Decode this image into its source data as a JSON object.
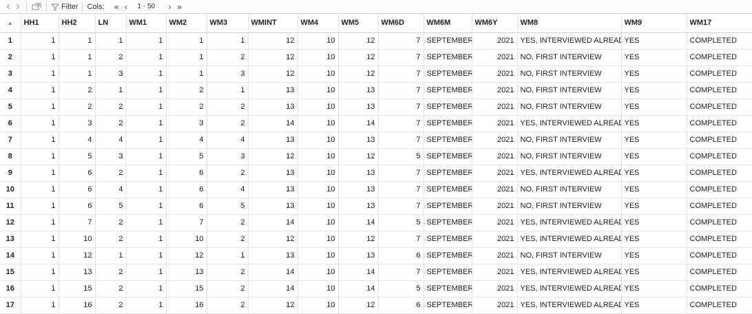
{
  "toolbar": {
    "filter_label": "Filter",
    "cols_label": "Cols:",
    "first_page": "«",
    "prev_page": "‹",
    "col_range": "1 - 50",
    "next_page": "›",
    "last_page": "»"
  },
  "columns": [
    "HH1",
    "HH2",
    "LN",
    "WM1",
    "WM2",
    "WM3",
    "WMINT",
    "WM4",
    "WM5",
    "WM6D",
    "WM6M",
    "WM6Y",
    "WM8",
    "WM9",
    "WM17"
  ],
  "rows": [
    [
      "1",
      "1",
      "1",
      "1",
      "1",
      "1",
      "1",
      "12",
      "10",
      "12",
      "7",
      "SEPTEMBER",
      "2021",
      "YES, INTERVIEWED ALREADY",
      "YES",
      "COMPLETED"
    ],
    [
      "2",
      "1",
      "1",
      "2",
      "1",
      "1",
      "2",
      "12",
      "10",
      "12",
      "7",
      "SEPTEMBER",
      "2021",
      "NO, FIRST INTERVIEW",
      "YES",
      "COMPLETED"
    ],
    [
      "3",
      "1",
      "1",
      "3",
      "1",
      "1",
      "3",
      "12",
      "10",
      "12",
      "7",
      "SEPTEMBER",
      "2021",
      "NO, FIRST INTERVIEW",
      "YES",
      "COMPLETED"
    ],
    [
      "4",
      "1",
      "2",
      "1",
      "1",
      "2",
      "1",
      "13",
      "10",
      "13",
      "7",
      "SEPTEMBER",
      "2021",
      "NO, FIRST INTERVIEW",
      "YES",
      "COMPLETED"
    ],
    [
      "5",
      "1",
      "2",
      "2",
      "1",
      "2",
      "2",
      "13",
      "10",
      "13",
      "7",
      "SEPTEMBER",
      "2021",
      "NO, FIRST INTERVIEW",
      "YES",
      "COMPLETED"
    ],
    [
      "6",
      "1",
      "3",
      "2",
      "1",
      "3",
      "2",
      "14",
      "10",
      "14",
      "7",
      "SEPTEMBER",
      "2021",
      "YES, INTERVIEWED ALREADY",
      "YES",
      "COMPLETED"
    ],
    [
      "7",
      "1",
      "4",
      "4",
      "1",
      "4",
      "4",
      "13",
      "10",
      "13",
      "7",
      "SEPTEMBER",
      "2021",
      "NO, FIRST INTERVIEW",
      "YES",
      "COMPLETED"
    ],
    [
      "8",
      "1",
      "5",
      "3",
      "1",
      "5",
      "3",
      "12",
      "10",
      "12",
      "5",
      "SEPTEMBER",
      "2021",
      "NO, FIRST INTERVIEW",
      "YES",
      "COMPLETED"
    ],
    [
      "9",
      "1",
      "6",
      "2",
      "1",
      "6",
      "2",
      "13",
      "10",
      "13",
      "7",
      "SEPTEMBER",
      "2021",
      "YES, INTERVIEWED ALREADY",
      "YES",
      "COMPLETED"
    ],
    [
      "10",
      "1",
      "6",
      "4",
      "1",
      "6",
      "4",
      "13",
      "10",
      "13",
      "7",
      "SEPTEMBER",
      "2021",
      "NO, FIRST INTERVIEW",
      "YES",
      "COMPLETED"
    ],
    [
      "11",
      "1",
      "6",
      "5",
      "1",
      "6",
      "5",
      "13",
      "10",
      "13",
      "7",
      "SEPTEMBER",
      "2021",
      "NO, FIRST INTERVIEW",
      "YES",
      "COMPLETED"
    ],
    [
      "12",
      "1",
      "7",
      "2",
      "1",
      "7",
      "2",
      "14",
      "10",
      "14",
      "5",
      "SEPTEMBER",
      "2021",
      "YES, INTERVIEWED ALREADY",
      "YES",
      "COMPLETED"
    ],
    [
      "13",
      "1",
      "10",
      "2",
      "1",
      "10",
      "2",
      "12",
      "10",
      "12",
      "7",
      "SEPTEMBER",
      "2021",
      "YES, INTERVIEWED ALREADY",
      "YES",
      "COMPLETED"
    ],
    [
      "14",
      "1",
      "12",
      "1",
      "1",
      "12",
      "1",
      "13",
      "10",
      "13",
      "6",
      "SEPTEMBER",
      "2021",
      "NO, FIRST INTERVIEW",
      "YES",
      "COMPLETED"
    ],
    [
      "15",
      "1",
      "13",
      "2",
      "1",
      "13",
      "2",
      "14",
      "10",
      "14",
      "7",
      "SEPTEMBER",
      "2021",
      "YES, INTERVIEWED ALREADY",
      "YES",
      "COMPLETED"
    ],
    [
      "16",
      "1",
      "15",
      "2",
      "1",
      "15",
      "2",
      "14",
      "10",
      "14",
      "5",
      "SEPTEMBER",
      "2021",
      "YES, INTERVIEWED ALREADY",
      "YES",
      "COMPLETED"
    ],
    [
      "17",
      "1",
      "16",
      "2",
      "1",
      "16",
      "2",
      "12",
      "10",
      "12",
      "6",
      "SEPTEMBER",
      "2021",
      "YES, INTERVIEWED ALREADY",
      "YES",
      "COMPLETED"
    ]
  ]
}
